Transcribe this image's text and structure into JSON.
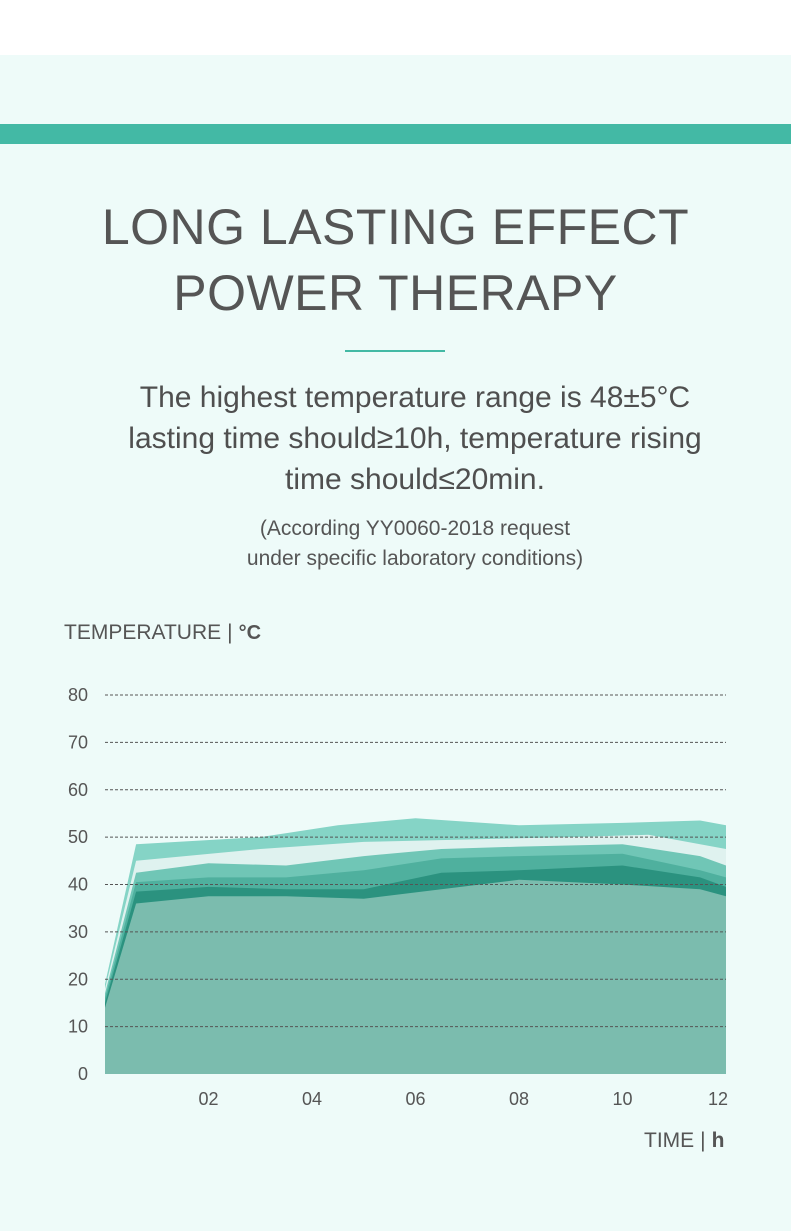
{
  "header": {
    "title_line1": "LONG LASTING EFFECT",
    "title_line2": "POWER THERAPY"
  },
  "description": {
    "line1": "The highest temperature range is 48±5°C",
    "line2": "lasting time should≥10h, temperature rising",
    "line3": "time should≤20min."
  },
  "note": {
    "line1": "(According YY0060-2018 request",
    "line2": "under specific laboratory conditions)"
  },
  "colors": {
    "accent": "#43b9a5",
    "panel_bg": "#eefbf9",
    "grid": "#555555",
    "text": "#555555"
  },
  "chart_data": {
    "type": "area",
    "ylabel": "TEMPERATURE",
    "ylabel_unit": "°C",
    "xlabel": "TIME",
    "xlabel_unit": "h",
    "ylim": [
      0,
      80
    ],
    "xlim": [
      0,
      12
    ],
    "yticks": [
      "0",
      "10",
      "20",
      "30",
      "40",
      "50",
      "60",
      "70",
      "80"
    ],
    "xticks": [
      {
        "value": 2,
        "label": "02"
      },
      {
        "value": 4,
        "label": "04"
      },
      {
        "value": 6,
        "label": "06"
      },
      {
        "value": 8,
        "label": "08"
      },
      {
        "value": 10,
        "label": "10"
      },
      {
        "value": 12,
        "label": "12"
      }
    ],
    "grid": true,
    "grid_style": "dashed",
    "series": [
      {
        "color": "#85d4c6",
        "x": [
          0,
          0.6,
          3,
          4.5,
          6,
          8,
          10,
          11.5,
          12
        ],
        "y": [
          19,
          48.5,
          50,
          52.5,
          54,
          52.5,
          53,
          53.5,
          52.5
        ]
      },
      {
        "color": "#dff2ef",
        "x": [
          0,
          0.6,
          3,
          5,
          7,
          9,
          10.5,
          12
        ],
        "y": [
          18,
          45,
          47.5,
          49,
          49.5,
          50,
          50.5,
          47.5
        ]
      },
      {
        "color": "#70c6b6",
        "x": [
          0,
          0.6,
          2,
          3.5,
          5,
          6.5,
          8,
          10,
          11.5,
          12
        ],
        "y": [
          17,
          42.5,
          44.5,
          44,
          46,
          47.5,
          48,
          48.5,
          46,
          44
        ]
      },
      {
        "color": "#4fb09e",
        "x": [
          0,
          0.6,
          2,
          3.5,
          5,
          6.5,
          8,
          10,
          11.5,
          12
        ],
        "y": [
          16,
          40.5,
          41.5,
          41.5,
          43,
          45.5,
          46,
          46.5,
          43,
          41.5
        ]
      },
      {
        "color": "#2b927f",
        "x": [
          0,
          0.6,
          2,
          3.5,
          5,
          6.5,
          8,
          10,
          11.5,
          12
        ],
        "y": [
          15,
          38.5,
          39.5,
          39,
          39,
          42.5,
          43,
          44,
          41.5,
          39.5
        ]
      },
      {
        "color": "#7bbcae",
        "x": [
          0,
          0.6,
          2,
          3.5,
          5,
          6.5,
          8,
          10,
          11.5,
          12
        ],
        "y": [
          14,
          36,
          37.5,
          37.5,
          37,
          39,
          41,
          40,
          39,
          37.5
        ]
      }
    ]
  }
}
